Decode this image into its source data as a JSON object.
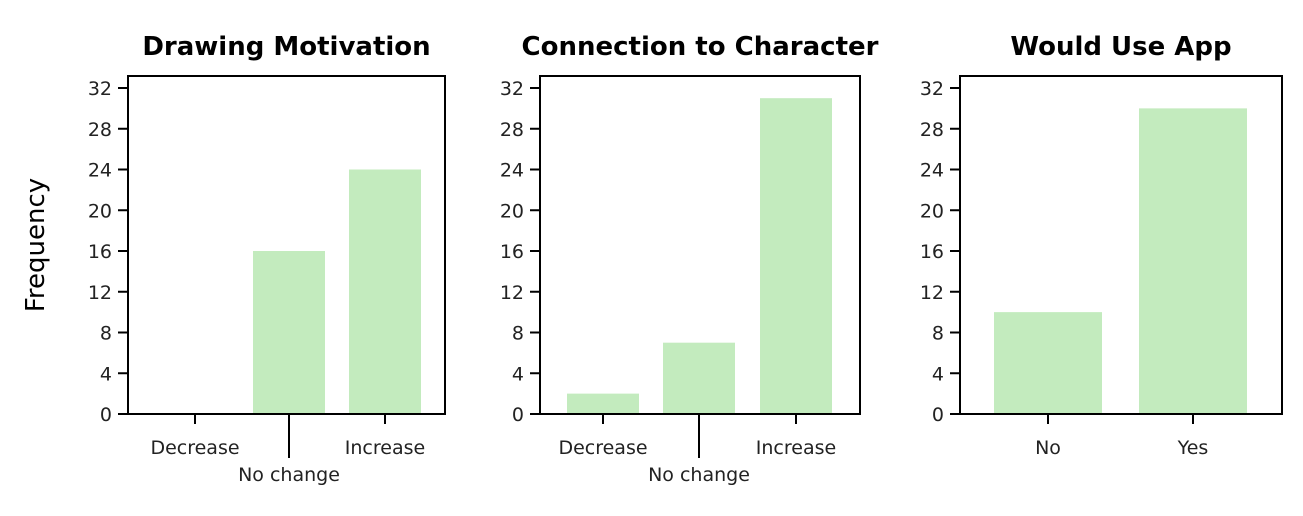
{
  "ylabel": "Frequency",
  "bar_color": "#c3ebbe",
  "chart_data": [
    {
      "type": "bar",
      "title": "Drawing Motivation",
      "categories": [
        "Decrease",
        "No change",
        "Increase"
      ],
      "values": [
        0,
        16,
        24
      ],
      "ylim": [
        0,
        32
      ],
      "yticks": [
        0,
        4,
        8,
        12,
        16,
        20,
        24,
        28,
        32
      ]
    },
    {
      "type": "bar",
      "title": "Connection to Character",
      "categories": [
        "Decrease",
        "No change",
        "Increase"
      ],
      "values": [
        2,
        7,
        31
      ],
      "ylim": [
        0,
        32
      ],
      "yticks": [
        0,
        4,
        8,
        12,
        16,
        20,
        24,
        28,
        32
      ]
    },
    {
      "type": "bar",
      "title": "Would Use App",
      "categories": [
        "No",
        "Yes"
      ],
      "values": [
        10,
        30
      ],
      "ylim": [
        0,
        32
      ],
      "yticks": [
        0,
        4,
        8,
        12,
        16,
        20,
        24,
        28,
        32
      ]
    }
  ]
}
